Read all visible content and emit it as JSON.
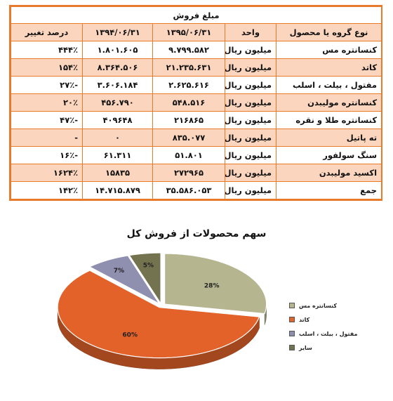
{
  "table": {
    "title": "مبلغ فروش",
    "headers": [
      "نوع گروه یا محصول",
      "واحد",
      "۱۳۹۵/۰۶/۳۱",
      "۱۳۹۴/۰۶/۳۱",
      "درصد تغییر"
    ],
    "rows": [
      {
        "name": "کنسانتره مس",
        "unit": "میلیون ریال",
        "y1395": "۹.۷۹۹.۵۸۲",
        "y1394": "۱.۸۰۱.۶۰۵",
        "change": "۴۴۴٪"
      },
      {
        "name": "کاتد",
        "unit": "میلیون ریال",
        "y1395": "۲۱.۲۳۵.۶۳۱",
        "y1394": "۸.۳۶۴.۵۰۶",
        "change": "۱۵۴٪"
      },
      {
        "name": "مفتول ، بیلت ، اسلب",
        "unit": "میلیون ریال",
        "y1395": "۲.۶۲۵.۶۱۶",
        "y1394": "۳.۶۰۶.۱۸۴",
        "change": "-۲۷٪"
      },
      {
        "name": "کنسانتره مولیبدن",
        "unit": "میلیون ریال",
        "y1395": "۵۴۸.۵۱۶",
        "y1394": "۴۵۶.۷۹۰",
        "change": "۲۰٪"
      },
      {
        "name": "کنسانتره طلا و نقره",
        "unit": "میلیون ریال",
        "y1395": "۲۱۶۸۶۵",
        "y1394": "۴۰۹۶۴۸",
        "change": "-۴۷٪"
      },
      {
        "name": "ته پاتیل",
        "unit": "میلیون ریال",
        "y1395": "۸۳۵.۰۷۷",
        "y1394": "۰",
        "change": "-"
      },
      {
        "name": "سنگ سولفور",
        "unit": "میلیون ریال",
        "y1395": "۵۱.۸۰۱",
        "y1394": "۶۱.۳۱۱",
        "change": "-۱۶٪"
      },
      {
        "name": "اکسید مولیبدن",
        "unit": "میلیون ریال",
        "y1395": "۲۷۲۹۶۵",
        "y1394": "۱۵۸۳۵",
        "change": "۱۶۲۴٪"
      },
      {
        "name": "جمع",
        "unit": "میلیون ریال",
        "y1395": "۳۵.۵۸۶.۰۵۳",
        "y1394": "۱۴.۷۱۵.۸۷۹",
        "change": "۱۴۲٪"
      }
    ]
  },
  "chart_data": {
    "type": "pie",
    "title": "سهم محصولات از فروش کل",
    "slices": [
      {
        "label": "کنسانتره مس",
        "value": 28,
        "display": "28%",
        "color": "#b5b590"
      },
      {
        "label": "کاتد",
        "value": 60,
        "display": "60%",
        "color": "#e3622a"
      },
      {
        "label": "مفتول ، بیلت ، اسلب",
        "value": 7,
        "display": "7%",
        "color": "#8f8fb0"
      },
      {
        "label": "سایر",
        "value": 5,
        "display": "5%",
        "color": "#747350"
      }
    ],
    "legend_position": "right",
    "style": "3d"
  }
}
